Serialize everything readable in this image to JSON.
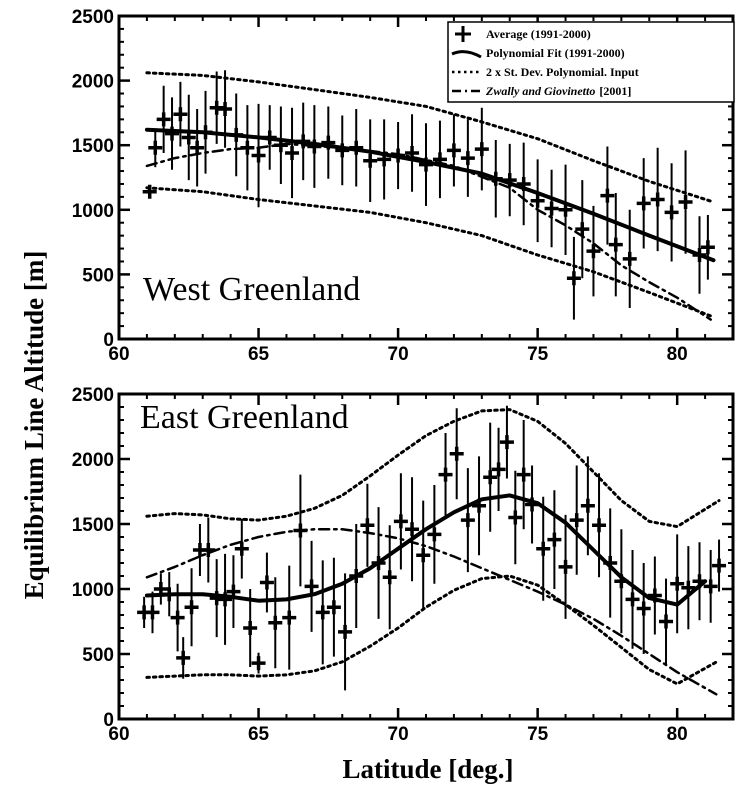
{
  "figure": {
    "ylabel": "Equilibrium Line Altitude [m]",
    "xlabel": "Latitude [deg.]"
  },
  "legend": {
    "average": "Average (1991-2000)",
    "fit": "Polynomial Fit (1991-2000)",
    "stdev": "2 x St. Dev. Polynomial. Input",
    "zg_authors": "Zwally and Giovinetto",
    "zg_year": "[2001]"
  },
  "chart_data": [
    {
      "type": "scatter",
      "region_label": "West Greenland",
      "xlim": [
        60,
        82
      ],
      "ylim": [
        0,
        2500
      ],
      "xticks": [
        60,
        65,
        70,
        75,
        80
      ],
      "yticks": [
        0,
        500,
        1000,
        1500,
        2000,
        2500
      ],
      "xticklabels": [
        "60",
        "65",
        "70",
        "75",
        "80"
      ],
      "yticklabels": [
        "0",
        "500",
        "1000",
        "1500",
        "2000",
        "2500"
      ],
      "series": [
        {
          "name": "Average (1991-2000)",
          "kind": "points_with_error_bars",
          "x": [
            61.1,
            61.3,
            61.6,
            61.9,
            62.2,
            62.5,
            62.8,
            63.1,
            63.5,
            63.8,
            64.2,
            64.6,
            65.0,
            65.4,
            65.8,
            66.2,
            66.6,
            67.0,
            67.5,
            68.0,
            68.5,
            69.0,
            69.5,
            70.0,
            70.5,
            71.0,
            71.5,
            72.0,
            72.5,
            73.0,
            73.5,
            74.0,
            74.5,
            75.0,
            75.5,
            76.0,
            76.3,
            76.6,
            77.0,
            77.5,
            77.8,
            78.3,
            78.8,
            79.3,
            79.8,
            80.3,
            80.8,
            81.1
          ],
          "y": [
            1140,
            1480,
            1700,
            1590,
            1740,
            1560,
            1480,
            1600,
            1790,
            1780,
            1580,
            1480,
            1420,
            1560,
            1500,
            1440,
            1530,
            1490,
            1520,
            1460,
            1480,
            1380,
            1390,
            1420,
            1440,
            1350,
            1390,
            1460,
            1400,
            1470,
            1240,
            1230,
            1200,
            1070,
            1010,
            1000,
            470,
            850,
            680,
            1110,
            730,
            620,
            1050,
            1080,
            980,
            1060,
            650,
            710
          ],
          "err": [
            40,
            150,
            260,
            280,
            250,
            330,
            300,
            320,
            280,
            300,
            320,
            330,
            400,
            250,
            300,
            350,
            300,
            320,
            280,
            270,
            300,
            320,
            310,
            260,
            300,
            320,
            300,
            280,
            300,
            320,
            300,
            280,
            320,
            320,
            300,
            350,
            320,
            380,
            350,
            380,
            400,
            380,
            350,
            400,
            380,
            400,
            300,
            250
          ]
        },
        {
          "name": "Polynomial Fit (1991-2000)",
          "kind": "solid",
          "x": [
            61,
            63,
            65,
            67,
            69,
            71,
            73,
            75,
            77,
            79,
            81.3
          ],
          "y": [
            1620,
            1600,
            1560,
            1510,
            1450,
            1370,
            1280,
            1130,
            970,
            800,
            610
          ]
        },
        {
          "name": "2 x St. Dev. Polynomial. Input",
          "kind": "dotted",
          "x": [
            61,
            63,
            65,
            67,
            69,
            71,
            73,
            75,
            77,
            79,
            81.3
          ],
          "y": [
            2060,
            2040,
            1990,
            1930,
            1870,
            1800,
            1680,
            1550,
            1380,
            1220,
            1060
          ]
        },
        {
          "name": "2 x St. Dev. Polynomial. Input",
          "kind": "dotted",
          "x": [
            61,
            63,
            65,
            67,
            69,
            71,
            73,
            75,
            77,
            79,
            81.3
          ],
          "y": [
            1170,
            1140,
            1080,
            1030,
            980,
            900,
            800,
            650,
            520,
            360,
            170
          ]
        },
        {
          "name": "Zwally and Giovinetto [2001]",
          "kind": "dashdot",
          "x": [
            61,
            62,
            63,
            64,
            65,
            66,
            68,
            70,
            72,
            74,
            75,
            76,
            77,
            78,
            79,
            80,
            81.2
          ],
          "y": [
            1340,
            1400,
            1440,
            1470,
            1480,
            1510,
            1480,
            1430,
            1340,
            1170,
            1000,
            880,
            740,
            570,
            440,
            320,
            150
          ]
        }
      ]
    },
    {
      "type": "scatter",
      "region_label": "East Greenland",
      "xlim": [
        60,
        82
      ],
      "ylim": [
        0,
        2500
      ],
      "xticks": [
        60,
        65,
        70,
        75,
        80
      ],
      "yticks": [
        0,
        500,
        1000,
        1500,
        2000,
        2500
      ],
      "xticklabels": [
        "60",
        "65",
        "70",
        "75",
        "80"
      ],
      "yticklabels": [
        "0",
        "500",
        "1000",
        "1500",
        "2000",
        "2500"
      ],
      "series": [
        {
          "name": "Average (1991-2000)",
          "kind": "points_with_error_bars",
          "x": [
            60.9,
            61.2,
            61.5,
            61.8,
            62.1,
            62.3,
            62.6,
            62.9,
            63.2,
            63.5,
            63.8,
            64.1,
            64.4,
            64.7,
            65.0,
            65.3,
            65.6,
            66.1,
            66.5,
            66.9,
            67.3,
            67.7,
            68.1,
            68.5,
            68.9,
            69.3,
            69.7,
            70.1,
            70.5,
            70.9,
            71.3,
            71.7,
            72.1,
            72.5,
            72.9,
            73.3,
            73.6,
            73.9,
            74.2,
            74.5,
            74.8,
            75.2,
            75.6,
            76.0,
            76.4,
            76.8,
            77.2,
            77.6,
            78.0,
            78.4,
            78.8,
            79.2,
            79.6,
            80.0,
            80.4,
            80.8,
            81.2,
            81.5
          ],
          "y": [
            820,
            820,
            1000,
            960,
            780,
            470,
            860,
            1300,
            1300,
            930,
            920,
            980,
            1310,
            700,
            430,
            1050,
            740,
            780,
            1450,
            1020,
            820,
            860,
            670,
            1100,
            1490,
            1200,
            1090,
            1520,
            1460,
            1260,
            1420,
            1880,
            2040,
            1530,
            1640,
            1860,
            1920,
            2130,
            1550,
            1880,
            1650,
            1310,
            1380,
            1170,
            1530,
            1640,
            1490,
            1200,
            1060,
            920,
            850,
            950,
            750,
            1040,
            1010,
            1060,
            1020,
            1180
          ],
          "err": [
            120,
            160,
            120,
            170,
            260,
            160,
            300,
            200,
            250,
            300,
            350,
            280,
            230,
            300,
            80,
            230,
            350,
            400,
            430,
            350,
            400,
            380,
            450,
            400,
            320,
            430,
            400,
            370,
            400,
            420,
            380,
            320,
            350,
            400,
            380,
            420,
            320,
            280,
            360,
            420,
            300,
            400,
            380,
            400,
            420,
            380,
            400,
            420,
            400,
            380,
            350,
            300,
            330,
            380,
            320,
            300,
            280,
            200
          ]
        },
        {
          "name": "Polynomial Fit (1991-2000)",
          "kind": "solid",
          "x": [
            61,
            62,
            63,
            64,
            65,
            66,
            67,
            68,
            69,
            70,
            71,
            72,
            73,
            74,
            75,
            76,
            77,
            78,
            79,
            80,
            81
          ],
          "y": [
            950,
            960,
            960,
            940,
            910,
            920,
            960,
            1040,
            1160,
            1310,
            1460,
            1590,
            1690,
            1720,
            1660,
            1510,
            1300,
            1090,
            930,
            880,
            1060
          ]
        },
        {
          "name": "2 x St. Dev. Polynomial. Input",
          "kind": "dotted",
          "x": [
            61,
            62,
            63,
            64,
            65,
            66,
            67,
            68,
            69,
            70,
            71,
            72,
            73,
            74,
            75,
            76,
            77,
            78,
            79,
            80,
            81.5
          ],
          "y": [
            1560,
            1580,
            1570,
            1540,
            1530,
            1560,
            1620,
            1720,
            1870,
            2030,
            2180,
            2290,
            2370,
            2380,
            2290,
            2120,
            1900,
            1680,
            1520,
            1480,
            1680
          ]
        },
        {
          "name": "2 x St. Dev. Polynomial. Input",
          "kind": "dotted",
          "x": [
            61,
            62,
            63,
            64,
            65,
            66,
            67,
            68,
            69,
            70,
            71,
            72,
            73,
            74,
            75,
            76,
            77,
            78,
            79,
            80,
            81.5
          ],
          "y": [
            320,
            330,
            340,
            340,
            330,
            340,
            370,
            440,
            560,
            700,
            860,
            990,
            1080,
            1100,
            1030,
            880,
            720,
            550,
            380,
            270,
            450
          ]
        },
        {
          "name": "Zwally and Giovinetto [2001]",
          "kind": "dashdot",
          "x": [
            61,
            62,
            63,
            64,
            65,
            66,
            67,
            68,
            69,
            70,
            71,
            72,
            73,
            74,
            75,
            76,
            77,
            78,
            79,
            80,
            81.4
          ],
          "y": [
            1090,
            1170,
            1260,
            1340,
            1400,
            1440,
            1460,
            1460,
            1430,
            1390,
            1330,
            1250,
            1160,
            1070,
            980,
            880,
            770,
            640,
            500,
            360,
            190
          ]
        }
      ]
    }
  ]
}
